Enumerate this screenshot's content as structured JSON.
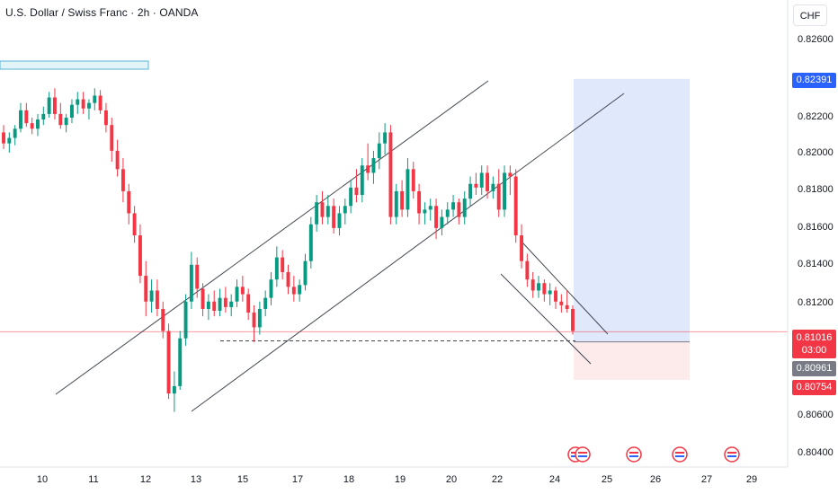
{
  "header": {
    "title": "U.S. Dollar / Swiss Franc · 2h · OANDA",
    "currency": "CHF"
  },
  "colors": {
    "up": "#089981",
    "down": "#f23645",
    "channel": "#434651",
    "target_zone": "#dbe5fb",
    "stop_zone": "#fdebec",
    "accent": "#2962ff"
  },
  "price_labels": {
    "target": "0.82391",
    "current": "0.81016",
    "countdown": "03:00",
    "entry": "0.80961",
    "stop": "0.80754"
  },
  "chart_data": {
    "type": "candlestick",
    "y_axis": {
      "range": [
        0.8028,
        0.8282
      ],
      "ticks": [
        "0.82600",
        "0.82200",
        "0.82000",
        "0.81800",
        "0.81600",
        "0.81400",
        "0.81200",
        "0.80600",
        "0.80400"
      ]
    },
    "x_axis": {
      "ticks": [
        "10",
        "11",
        "12",
        "13",
        "15",
        "17",
        "18",
        "19",
        "20",
        "22",
        "24",
        "25",
        "26",
        "27",
        "29"
      ]
    },
    "candles": [
      [
        0.821,
        0.8214,
        0.8201,
        0.8204
      ],
      [
        0.8204,
        0.821,
        0.8199,
        0.8207
      ],
      [
        0.8207,
        0.8214,
        0.8203,
        0.8212
      ],
      [
        0.8212,
        0.8226,
        0.821,
        0.8222
      ],
      [
        0.8222,
        0.8226,
        0.8213,
        0.8215
      ],
      [
        0.8215,
        0.8218,
        0.8209,
        0.8212
      ],
      [
        0.8212,
        0.822,
        0.8208,
        0.8217
      ],
      [
        0.8217,
        0.8224,
        0.8214,
        0.822
      ],
      [
        0.822,
        0.8232,
        0.8218,
        0.8229
      ],
      [
        0.8229,
        0.8234,
        0.8217,
        0.822
      ],
      [
        0.822,
        0.8226,
        0.8212,
        0.8214
      ],
      [
        0.8214,
        0.822,
        0.821,
        0.8218
      ],
      [
        0.8218,
        0.8228,
        0.8215,
        0.8225
      ],
      [
        0.8225,
        0.8232,
        0.822,
        0.8228
      ],
      [
        0.8228,
        0.8232,
        0.822,
        0.8223
      ],
      [
        0.8223,
        0.8228,
        0.8217,
        0.8226
      ],
      [
        0.8226,
        0.8234,
        0.8222,
        0.823
      ],
      [
        0.823,
        0.8233,
        0.822,
        0.8222
      ],
      [
        0.8222,
        0.8226,
        0.821,
        0.8214
      ],
      [
        0.8214,
        0.8218,
        0.8194,
        0.82
      ],
      [
        0.82,
        0.8206,
        0.8186,
        0.819
      ],
      [
        0.819,
        0.8196,
        0.8172,
        0.8178
      ],
      [
        0.8178,
        0.8182,
        0.816,
        0.8166
      ],
      [
        0.8166,
        0.817,
        0.815,
        0.8154
      ],
      [
        0.8154,
        0.816,
        0.8128,
        0.8132
      ],
      [
        0.8132,
        0.814,
        0.811,
        0.8118
      ],
      [
        0.8118,
        0.813,
        0.8112,
        0.8124
      ],
      [
        0.8124,
        0.813,
        0.811,
        0.8114
      ],
      [
        0.8114,
        0.8118,
        0.8098,
        0.8102
      ],
      [
        0.8102,
        0.8106,
        0.8065,
        0.8068
      ],
      [
        0.8068,
        0.808,
        0.8058,
        0.8072
      ],
      [
        0.8072,
        0.8102,
        0.807,
        0.8098
      ],
      [
        0.8098,
        0.8122,
        0.8094,
        0.8118
      ],
      [
        0.8118,
        0.8145,
        0.8114,
        0.8138
      ],
      [
        0.8138,
        0.8142,
        0.812,
        0.8125
      ],
      [
        0.8125,
        0.8128,
        0.811,
        0.8114
      ],
      [
        0.8114,
        0.8122,
        0.8108,
        0.8118
      ],
      [
        0.8118,
        0.8124,
        0.811,
        0.8113
      ],
      [
        0.8113,
        0.8125,
        0.811,
        0.812
      ],
      [
        0.812,
        0.8126,
        0.8112,
        0.8115
      ],
      [
        0.8115,
        0.8122,
        0.811,
        0.8118
      ],
      [
        0.8118,
        0.813,
        0.8115,
        0.8126
      ],
      [
        0.8126,
        0.8132,
        0.8118,
        0.8122
      ],
      [
        0.8122,
        0.8125,
        0.8108,
        0.8112
      ],
      [
        0.8112,
        0.8116,
        0.8096,
        0.8104
      ],
      [
        0.8104,
        0.8118,
        0.81,
        0.8114
      ],
      [
        0.8114,
        0.8124,
        0.811,
        0.812
      ],
      [
        0.812,
        0.8134,
        0.8116,
        0.813
      ],
      [
        0.813,
        0.8148,
        0.8126,
        0.8142
      ],
      [
        0.8142,
        0.8146,
        0.813,
        0.8134
      ],
      [
        0.8134,
        0.8138,
        0.8122,
        0.8126
      ],
      [
        0.8126,
        0.8132,
        0.8118,
        0.8122
      ],
      [
        0.8122,
        0.813,
        0.8118,
        0.8127
      ],
      [
        0.8127,
        0.8144,
        0.8124,
        0.814
      ],
      [
        0.814,
        0.8164,
        0.8136,
        0.816
      ],
      [
        0.816,
        0.8176,
        0.8156,
        0.8172
      ],
      [
        0.8172,
        0.8178,
        0.816,
        0.8164
      ],
      [
        0.8164,
        0.8176,
        0.816,
        0.817
      ],
      [
        0.817,
        0.8174,
        0.8155,
        0.8158
      ],
      [
        0.8158,
        0.817,
        0.8154,
        0.8166
      ],
      [
        0.8166,
        0.8174,
        0.816,
        0.817
      ],
      [
        0.817,
        0.8184,
        0.8166,
        0.818
      ],
      [
        0.818,
        0.819,
        0.8172,
        0.8176
      ],
      [
        0.8176,
        0.8196,
        0.8172,
        0.8192
      ],
      [
        0.8192,
        0.8204,
        0.8184,
        0.8188
      ],
      [
        0.8188,
        0.82,
        0.8182,
        0.8196
      ],
      [
        0.8196,
        0.821,
        0.819,
        0.8204
      ],
      [
        0.8204,
        0.8215,
        0.8198,
        0.821
      ],
      [
        0.821,
        0.8214,
        0.816,
        0.8164
      ],
      [
        0.8164,
        0.8182,
        0.816,
        0.8178
      ],
      [
        0.8178,
        0.8184,
        0.8164,
        0.8168
      ],
      [
        0.8168,
        0.8196,
        0.8164,
        0.819
      ],
      [
        0.819,
        0.8194,
        0.8174,
        0.8178
      ],
      [
        0.8178,
        0.8182,
        0.816,
        0.8166
      ],
      [
        0.8166,
        0.8172,
        0.816,
        0.8168
      ],
      [
        0.8168,
        0.8174,
        0.8162,
        0.817
      ],
      [
        0.817,
        0.8174,
        0.8152,
        0.8158
      ],
      [
        0.8158,
        0.8168,
        0.8154,
        0.8164
      ],
      [
        0.8164,
        0.8172,
        0.816,
        0.8168
      ],
      [
        0.8168,
        0.8176,
        0.8164,
        0.8172
      ],
      [
        0.8172,
        0.8174,
        0.816,
        0.8164
      ],
      [
        0.8164,
        0.8178,
        0.816,
        0.8174
      ],
      [
        0.8174,
        0.8186,
        0.817,
        0.8182
      ],
      [
        0.8182,
        0.8188,
        0.8176,
        0.818
      ],
      [
        0.818,
        0.8192,
        0.8176,
        0.8188
      ],
      [
        0.8188,
        0.8192,
        0.8174,
        0.8178
      ],
      [
        0.8178,
        0.8186,
        0.8174,
        0.8182
      ],
      [
        0.8182,
        0.819,
        0.8164,
        0.8168
      ],
      [
        0.8168,
        0.8192,
        0.8164,
        0.8188
      ],
      [
        0.8188,
        0.8192,
        0.8176,
        0.8186
      ],
      [
        0.8186,
        0.819,
        0.815,
        0.8154
      ],
      [
        0.8154,
        0.816,
        0.8136,
        0.814
      ],
      [
        0.814,
        0.8144,
        0.8126,
        0.813
      ],
      [
        0.813,
        0.8134,
        0.812,
        0.8124
      ],
      [
        0.8124,
        0.8132,
        0.812,
        0.8128
      ],
      [
        0.8128,
        0.813,
        0.8118,
        0.8122
      ],
      [
        0.8122,
        0.8128,
        0.8116,
        0.8124
      ],
      [
        0.8124,
        0.8126,
        0.8114,
        0.8118
      ],
      [
        0.8118,
        0.8122,
        0.8112,
        0.8116
      ],
      [
        0.8116,
        0.8124,
        0.8112,
        0.8114
      ],
      [
        0.8114,
        0.8116,
        0.81,
        0.8102
      ]
    ],
    "annotations": {
      "target_zone": [
        0.82391,
        0.80961
      ],
      "stop_zone": [
        0.80961,
        0.80754
      ],
      "entry_price": 0.80961,
      "current_price": 0.81016,
      "support_dashed": 0.80966
    }
  }
}
